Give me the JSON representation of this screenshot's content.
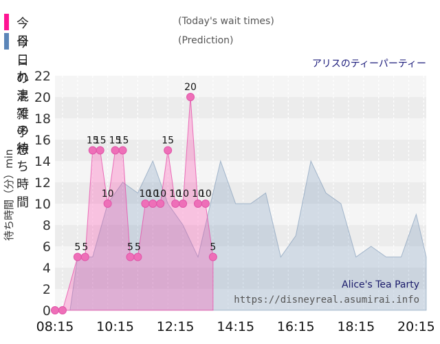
{
  "legend": {
    "today": {
      "label": "今日これまでの待ち時間",
      "sub": "(Today's wait times)",
      "color": "#ff1493"
    },
    "prediction": {
      "label": "今日の混雑予想",
      "sub": "(Prediction)",
      "color": "#5b85b8"
    }
  },
  "attraction_name": "アリスのティーパーティー",
  "watermark": {
    "title": "Alice's Tea Party",
    "url": "https://disneyreal.asumirai.info"
  },
  "chart_data": {
    "type": "area",
    "ylabel": "待ち時間（分）min",
    "ylim": [
      0,
      22
    ],
    "yticks": [
      0,
      2,
      4,
      6,
      8,
      10,
      12,
      14,
      16,
      18,
      20,
      22
    ],
    "xlim_minutes": [
      495,
      1235
    ],
    "xticks": [
      {
        "label": "08:15",
        "t": "08:15"
      },
      {
        "label": "10:15",
        "t": "10:15"
      },
      {
        "label": "12:15",
        "t": "12:15"
      },
      {
        "label": "14:15",
        "t": "14:15"
      },
      {
        "label": "16:15",
        "t": "16:15"
      },
      {
        "label": "18:15",
        "t": "18:15"
      },
      {
        "label": "20:15",
        "t": "20:15"
      }
    ],
    "series": [
      {
        "name": "今日これまでの待ち時間",
        "color": "#ff1493",
        "points": [
          {
            "t": "08:15",
            "v": 0
          },
          {
            "t": "08:30",
            "v": 0
          },
          {
            "t": "09:00",
            "v": 5
          },
          {
            "t": "09:15",
            "v": 5
          },
          {
            "t": "09:30",
            "v": 15
          },
          {
            "t": "09:45",
            "v": 15
          },
          {
            "t": "10:00",
            "v": 10
          },
          {
            "t": "10:15",
            "v": 15
          },
          {
            "t": "10:30",
            "v": 15
          },
          {
            "t": "10:45",
            "v": 5
          },
          {
            "t": "11:00",
            "v": 5
          },
          {
            "t": "11:15",
            "v": 10
          },
          {
            "t": "11:30",
            "v": 10
          },
          {
            "t": "11:45",
            "v": 10
          },
          {
            "t": "12:00",
            "v": 15
          },
          {
            "t": "12:15",
            "v": 10
          },
          {
            "t": "12:30",
            "v": 10
          },
          {
            "t": "12:45",
            "v": 20
          },
          {
            "t": "13:00",
            "v": 10
          },
          {
            "t": "13:15",
            "v": 10
          },
          {
            "t": "13:30",
            "v": 5
          }
        ]
      },
      {
        "name": "今日の混雑予想",
        "color": "#5b85b8",
        "points": [
          {
            "t": "08:15",
            "v": 0
          },
          {
            "t": "08:45",
            "v": 0
          },
          {
            "t": "09:00",
            "v": 5
          },
          {
            "t": "09:30",
            "v": 5
          },
          {
            "t": "10:00",
            "v": 10
          },
          {
            "t": "10:30",
            "v": 12
          },
          {
            "t": "11:00",
            "v": 11
          },
          {
            "t": "11:30",
            "v": 14
          },
          {
            "t": "12:00",
            "v": 10
          },
          {
            "t": "12:30",
            "v": 8
          },
          {
            "t": "13:00",
            "v": 5
          },
          {
            "t": "13:45",
            "v": 14
          },
          {
            "t": "14:15",
            "v": 10
          },
          {
            "t": "14:45",
            "v": 10
          },
          {
            "t": "15:15",
            "v": 11
          },
          {
            "t": "15:45",
            "v": 5
          },
          {
            "t": "16:15",
            "v": 7
          },
          {
            "t": "16:45",
            "v": 14
          },
          {
            "t": "17:15",
            "v": 11
          },
          {
            "t": "17:45",
            "v": 10
          },
          {
            "t": "18:15",
            "v": 5
          },
          {
            "t": "18:45",
            "v": 6
          },
          {
            "t": "19:15",
            "v": 5
          },
          {
            "t": "19:45",
            "v": 5
          },
          {
            "t": "20:15",
            "v": 9
          },
          {
            "t": "20:35",
            "v": 5
          }
        ]
      }
    ],
    "data_labels": [
      {
        "t": "09:00",
        "v": 5
      },
      {
        "t": "09:15",
        "v": 5
      },
      {
        "t": "09:30",
        "v": 15
      },
      {
        "t": "09:45",
        "v": 15
      },
      {
        "t": "10:00",
        "v": 10
      },
      {
        "t": "10:15",
        "v": 15
      },
      {
        "t": "10:30",
        "v": 15
      },
      {
        "t": "10:45",
        "v": 5
      },
      {
        "t": "11:00",
        "v": 5
      },
      {
        "t": "11:15",
        "v": 10
      },
      {
        "t": "11:30",
        "v": 10
      },
      {
        "t": "11:45",
        "v": 10
      },
      {
        "t": "12:00",
        "v": 15
      },
      {
        "t": "12:15",
        "v": 10
      },
      {
        "t": "12:30",
        "v": 10
      },
      {
        "t": "12:45",
        "v": 20
      },
      {
        "t": "13:00",
        "v": 10
      },
      {
        "t": "13:15",
        "v": 10
      },
      {
        "t": "13:30",
        "v": 5
      }
    ],
    "grid": true
  }
}
